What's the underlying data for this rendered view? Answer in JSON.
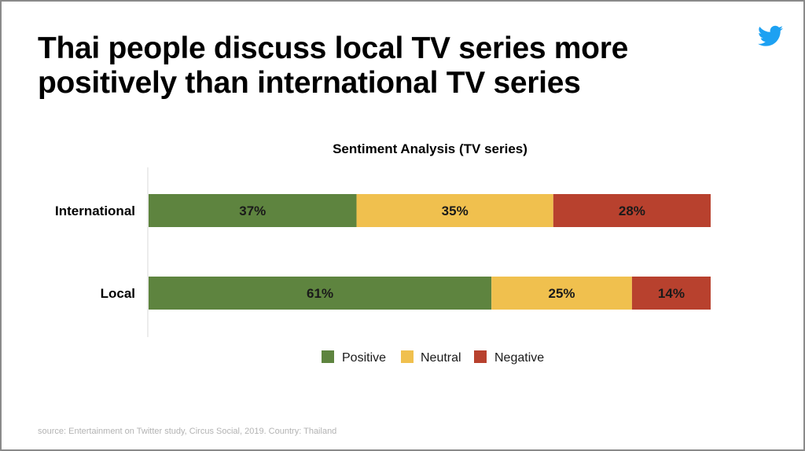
{
  "slide": {
    "title": "Thai people discuss local TV series more positively than international TV series",
    "source": "source: Entertainment on Twitter study, Circus Social, 2019. Country: Thailand",
    "logo_icon": "twitter-bird-icon",
    "logo_color": "#1DA1F2"
  },
  "chart_data": {
    "type": "bar",
    "orientation": "horizontal",
    "stacked": true,
    "normalized": true,
    "title": "Sentiment Analysis (TV series)",
    "categories": [
      "International",
      "Local"
    ],
    "series": [
      {
        "name": "Positive",
        "color": "#5E843F",
        "values": [
          37,
          61
        ],
        "labels": [
          "37%",
          "61%"
        ]
      },
      {
        "name": "Neutral",
        "color": "#F0C04E",
        "values": [
          35,
          25
        ],
        "labels": [
          "35%",
          "25%"
        ]
      },
      {
        "name": "Negative",
        "color": "#B8412E",
        "values": [
          28,
          14
        ],
        "labels": [
          "28%",
          "14%"
        ]
      }
    ],
    "xlim": [
      0,
      100
    ],
    "xlabel": "",
    "ylabel": "",
    "grid": false,
    "legend_position": "bottom"
  }
}
